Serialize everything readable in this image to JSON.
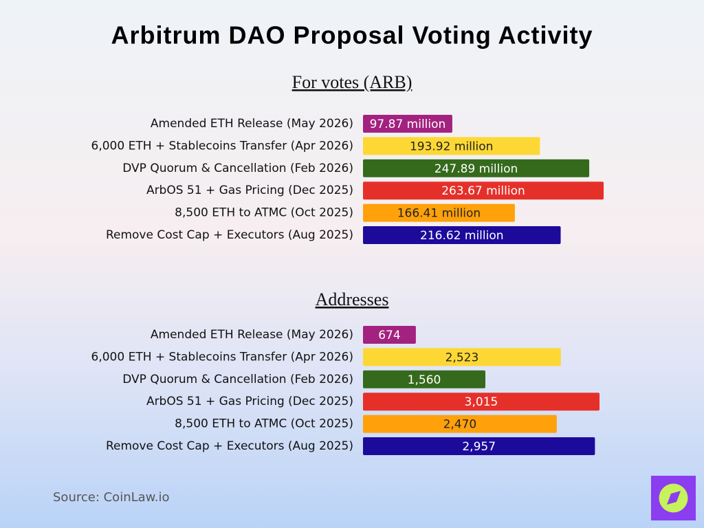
{
  "title": "Arbitrum DAO Proposal Voting Activity",
  "source": "Source: CoinLaw.io",
  "chart_data": [
    {
      "type": "bar",
      "orientation": "horizontal",
      "title": "For votes (ARB)",
      "categories": [
        "Amended ETH Release (May 2026)",
        "6,000 ETH + Stablecoins Transfer (Apr 2026)",
        "DVP Quorum & Cancellation (Feb 2026)",
        "ArbOS 51 + Gas Pricing (Dec 2025)",
        "8,500 ETH to ATMC (Oct 2025)",
        "Remove Cost Cap + Executors (Aug 2025)"
      ],
      "values": [
        97.87,
        193.92,
        247.89,
        263.67,
        166.41,
        216.62
      ],
      "value_labels": [
        "97.87 million",
        "193.92 million",
        "247.89 million",
        "263.67 million",
        "166.41 million",
        "216.62 million"
      ],
      "colors": [
        "#a3227f",
        "#fdd835",
        "#356a1c",
        "#e5302a",
        "#ffa10a",
        "#1c0b9b"
      ]
    },
    {
      "type": "bar",
      "orientation": "horizontal",
      "title": "Addresses",
      "categories": [
        "Amended ETH Release (May 2026)",
        "6,000 ETH + Stablecoins Transfer (Apr 2026)",
        "DVP Quorum & Cancellation (Feb 2026)",
        "ArbOS 51 + Gas Pricing (Dec 2025)",
        "8,500 ETH to ATMC (Oct 2025)",
        "Remove Cost Cap + Executors (Aug 2025)"
      ],
      "values": [
        674,
        2523,
        1560,
        3015,
        2470,
        2957
      ],
      "value_labels": [
        "674",
        "2,523",
        "1,560",
        "3,015",
        "2,470",
        "2,957"
      ],
      "colors": [
        "#a3227f",
        "#fdd835",
        "#356a1c",
        "#e5302a",
        "#ffa10a",
        "#1c0b9b"
      ]
    }
  ]
}
